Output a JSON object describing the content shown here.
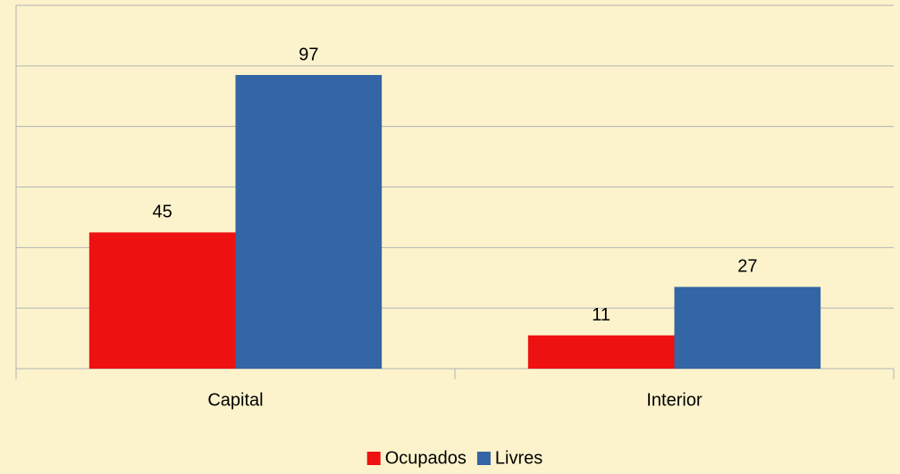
{
  "chart_data": {
    "type": "bar",
    "categories": [
      "Capital",
      "Interior"
    ],
    "series": [
      {
        "name": "Ocupados",
        "color": "#ee1111",
        "values": [
          45,
          11
        ]
      },
      {
        "name": "Livres",
        "color": "#3465a4",
        "values": [
          97,
          27
        ]
      }
    ],
    "ylim": [
      0,
      120
    ],
    "yticks": [
      0,
      20,
      40,
      60,
      80,
      100,
      120
    ],
    "grid": true,
    "legend": "bottom"
  }
}
